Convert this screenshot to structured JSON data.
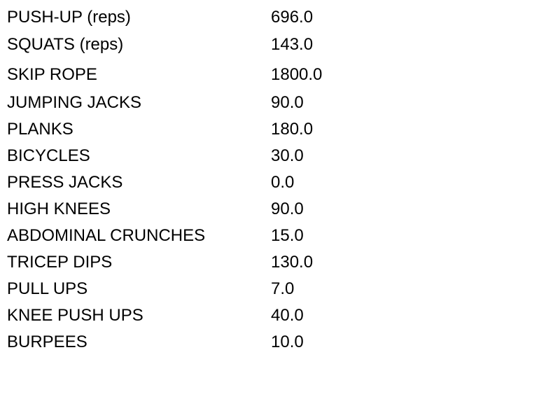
{
  "exercises": [
    {
      "name": "PUSH-UP (reps)",
      "value": "696.0"
    },
    {
      "name": "SQUATS (reps)",
      "value": "143.0"
    },
    {
      "name": "SKIP ROPE",
      "value": "1800.0"
    },
    {
      "name": "JUMPING JACKS",
      "value": "90.0"
    },
    {
      "name": "PLANKS",
      "value": "180.0"
    },
    {
      "name": "BICYCLES",
      "value": "30.0"
    },
    {
      "name": "PRESS JACKS",
      "value": "0.0"
    },
    {
      "name": "HIGH KNEES",
      "value": "90.0"
    },
    {
      "name": "ABDOMINAL CRUNCHES",
      "value": "15.0"
    },
    {
      "name": "TRICEP DIPS",
      "value": "130.0"
    },
    {
      "name": "PULL UPS",
      "value": "7.0"
    },
    {
      "name": "KNEE PUSH UPS",
      "value": "40.0"
    },
    {
      "name": "BURPEES",
      "value": "10.0"
    }
  ]
}
